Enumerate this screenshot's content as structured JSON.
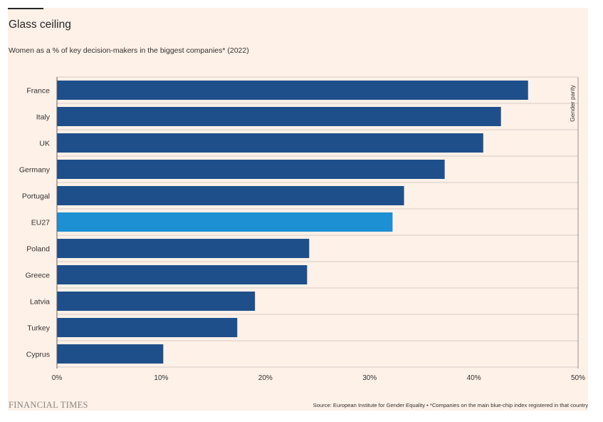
{
  "header": {
    "title": "Glass ceiling",
    "subtitle": "Women as a % of key decision-makers in the biggest companies* (2022)"
  },
  "footer": {
    "brand": "FINANCIAL TIMES",
    "source": "Source: European Institute for Gender Equality • *Companies on the main blue-chip index registered in that country"
  },
  "colors": {
    "background": "#fdf1e8",
    "bar": "#1e4f8a",
    "highlight": "#1d8fd3",
    "grid": "#d9ccc3",
    "text": "#33302e"
  },
  "chart_data": {
    "type": "bar",
    "orientation": "horizontal",
    "title": "Glass ceiling",
    "subtitle": "Women as a % of key decision-makers in the biggest companies* (2022)",
    "categories": [
      "France",
      "Italy",
      "UK",
      "Germany",
      "Portugal",
      "EU27",
      "Poland",
      "Greece",
      "Latvia",
      "Turkey",
      "Cyprus"
    ],
    "values": [
      45.2,
      42.6,
      40.9,
      37.2,
      33.3,
      32.2,
      24.2,
      24.0,
      19.0,
      17.3,
      10.2
    ],
    "highlight": "EU27",
    "xlim": [
      0,
      50
    ],
    "xticks": [
      0,
      10,
      20,
      30,
      40,
      50
    ],
    "tick_labels": [
      "0%",
      "10%",
      "20%",
      "30%",
      "40%",
      "50%"
    ],
    "reference_line": {
      "value": 50,
      "label": "Gender parity"
    },
    "grid": true
  }
}
